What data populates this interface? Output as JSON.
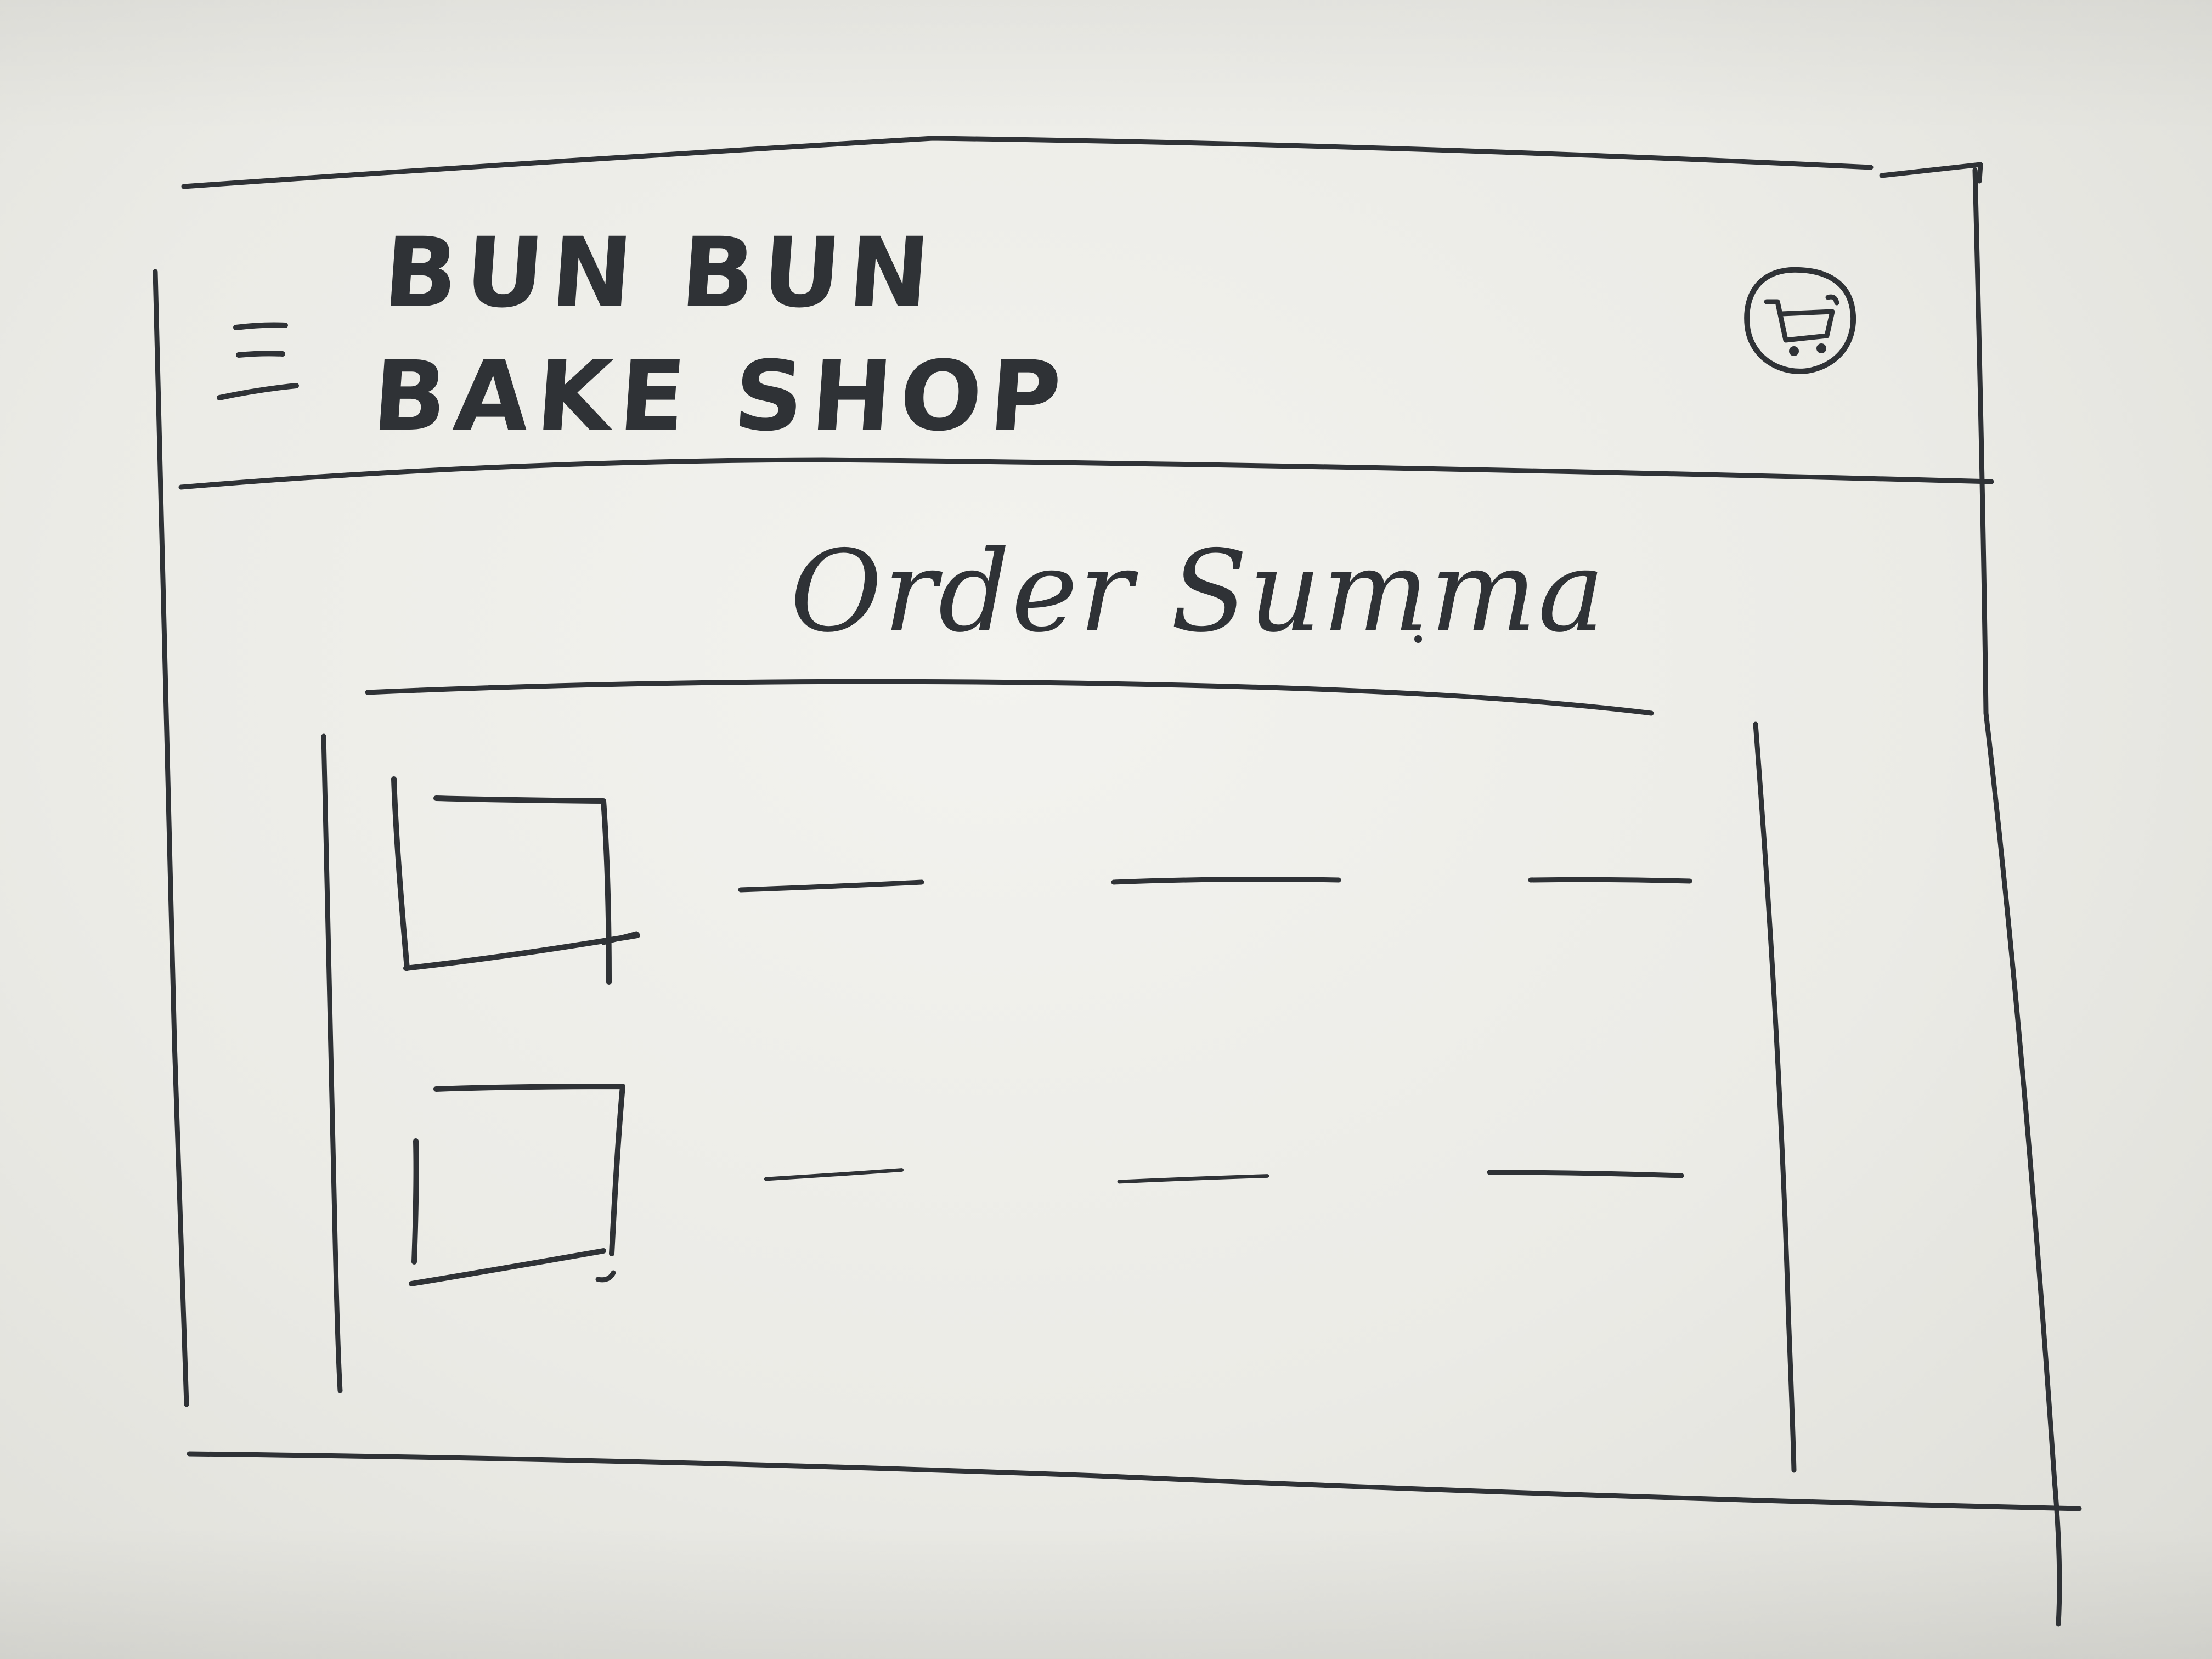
{
  "header": {
    "brand_line1": "BUN BUN",
    "brand_line2": "BAKE SHOP",
    "menu_icon": "hamburger-menu-icon",
    "cart_icon": "shopping-cart-icon"
  },
  "main": {
    "title": "Order Summa"
  },
  "order_table": {
    "rows": [
      {
        "thumbnail": "product-image-placeholder",
        "cells": [
          "",
          "",
          ""
        ]
      },
      {
        "thumbnail": "product-image-placeholder",
        "cells": [
          "",
          "",
          ""
        ]
      }
    ]
  },
  "colors": {
    "ink": "#2f3236",
    "paper": "#efefea"
  }
}
